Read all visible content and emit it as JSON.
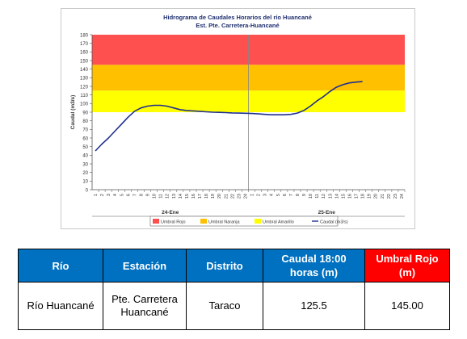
{
  "chart_data": {
    "type": "line",
    "title": "Hidrograma de Caudales Horarios del río Huancané",
    "subtitle": "Est. Pte. Carretera-Huancané",
    "ylabel": "Caudal  (m3/s)",
    "ylim": [
      0,
      180
    ],
    "yticks": [
      "0",
      "10",
      "20",
      "30",
      "40",
      "50",
      "60",
      "70",
      "80",
      "90",
      "100",
      "110",
      "120",
      "130",
      "140",
      "150",
      "160",
      "170",
      "180"
    ],
    "xticks": [
      "1",
      "2",
      "3",
      "4",
      "5",
      "6",
      "7",
      "8",
      "9",
      "10",
      "11",
      "12",
      "13",
      "14",
      "15",
      "16",
      "17",
      "18",
      "19",
      "20",
      "21",
      "22",
      "23",
      "24",
      "1",
      "2",
      "3",
      "4",
      "5",
      "6",
      "7",
      "8",
      "9",
      "10",
      "11",
      "12",
      "13",
      "14",
      "15",
      "16",
      "17",
      "18",
      "19",
      "20",
      "21",
      "22",
      "23",
      "24"
    ],
    "day_labels": [
      "24-Ene",
      "25-Ene"
    ],
    "thresholds": [
      {
        "name": "Umbral Rojo",
        "from": 145,
        "to": 180,
        "color": "#ff5050"
      },
      {
        "name": "Umbral Naranja",
        "from": 115,
        "to": 145,
        "color": "#ffc000"
      },
      {
        "name": "Umbral Amarillo",
        "from": 90,
        "to": 115,
        "color": "#ffff00"
      }
    ],
    "series": [
      {
        "name": "Caudal (m3/s)",
        "color": "#1f2f8f",
        "x": [
          1,
          2,
          3,
          4,
          5,
          6,
          7,
          8,
          9,
          10,
          11,
          12,
          13,
          14,
          15,
          16,
          17,
          18,
          19,
          20,
          21,
          22,
          23,
          24,
          25,
          26,
          27,
          28,
          29,
          30,
          31,
          32,
          33,
          34,
          35,
          36,
          37,
          38,
          39,
          40,
          41,
          42
        ],
        "values": [
          45,
          53,
          60,
          68,
          76,
          84,
          91,
          95,
          97,
          98,
          98,
          97,
          95,
          93,
          92,
          91.5,
          91,
          90.5,
          90,
          89.8,
          89.5,
          89.2,
          89,
          88.8,
          88.5,
          88,
          87.5,
          87,
          87,
          87,
          87.5,
          89,
          92,
          97,
          103,
          108,
          114,
          119,
          122,
          124,
          125,
          125.5
        ]
      }
    ],
    "legend": [
      "Umbral Rojo",
      "Umbral Naranja",
      "Umbral Amarillo",
      "Caudal (m3/s)"
    ],
    "legend_position": "bottom",
    "grid": false
  },
  "table": {
    "headers": [
      {
        "label": "Río",
        "color": "#0070c0"
      },
      {
        "label": "Estación",
        "color": "#0070c0"
      },
      {
        "label": "Distrito",
        "color": "#0070c0"
      },
      {
        "label": "Caudal 18:00 horas (m)",
        "color": "#0070c0"
      },
      {
        "label": "Umbral Rojo (m)",
        "color": "#ff0000"
      }
    ],
    "row": [
      "Río Huancané",
      "Pte. Carretera Huancané",
      "Taraco",
      "125.5",
      "145.00"
    ]
  }
}
